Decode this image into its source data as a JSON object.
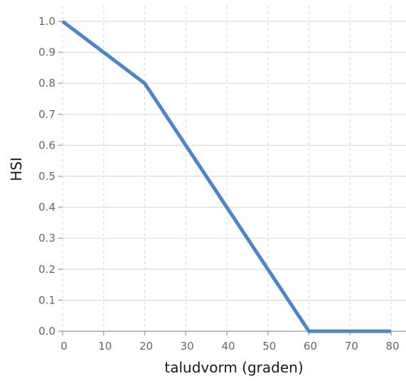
{
  "chart_data": {
    "type": "line",
    "title": "",
    "xlabel": "taludvorm (graden)",
    "ylabel": "HSI",
    "xlim": [
      0,
      80
    ],
    "ylim": [
      0,
      1
    ],
    "x_ticks": [
      0,
      10,
      20,
      30,
      40,
      50,
      60,
      70,
      80
    ],
    "y_ticks": [
      "0.0",
      "0.1",
      "0.2",
      "0.3",
      "0.4",
      "0.5",
      "0.6",
      "0.7",
      "0.8",
      "0.9",
      "1.0"
    ],
    "grid": true,
    "legend": "none",
    "series": [
      {
        "color": "#4a86c8",
        "x": [
          0,
          20,
          60,
          80
        ],
        "y": [
          1.0,
          0.8,
          0.0,
          0.0
        ]
      }
    ]
  }
}
